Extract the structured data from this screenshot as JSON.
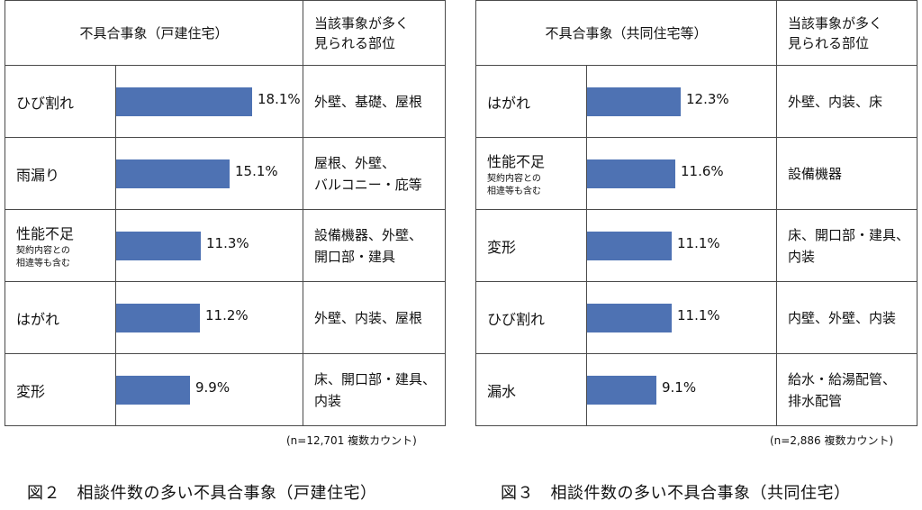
{
  "chart_data": [
    {
      "type": "bar",
      "orientation": "horizontal",
      "header": {
        "category": "不具合事象（戸建住宅）",
        "location": "当該事象が多く\n見られる部位"
      },
      "rows": [
        {
          "category": "ひび割れ",
          "sub": "",
          "value": 18.1,
          "value_label": "18.1%",
          "location": "外壁、基礎、屋根"
        },
        {
          "category": "雨漏り",
          "sub": "",
          "value": 15.1,
          "value_label": "15.1%",
          "location": "屋根、外壁、\nバルコニー・庇等"
        },
        {
          "category": "性能不足",
          "sub": "契約内容との\n相違等も含む",
          "value": 11.3,
          "value_label": "11.3%",
          "location": "設備機器、外壁、\n開口部・建具"
        },
        {
          "category": "はがれ",
          "sub": "",
          "value": 11.2,
          "value_label": "11.2%",
          "location": "外壁、内装、屋根"
        },
        {
          "category": "変形",
          "sub": "",
          "value": 9.9,
          "value_label": "9.9%",
          "location": "床、開口部・建具、\n内装"
        }
      ],
      "note": "(n=12,701 複数カウント)",
      "caption": "図２　相談件数の多い不具合事象（戸建住宅）"
    },
    {
      "type": "bar",
      "orientation": "horizontal",
      "header": {
        "category": "不具合事象（共同住宅等）",
        "location": "当該事象が多く\n見られる部位"
      },
      "rows": [
        {
          "category": "はがれ",
          "sub": "",
          "value": 12.3,
          "value_label": "12.3%",
          "location": "外壁、内装、床"
        },
        {
          "category": "性能不足",
          "sub": "契約内容との\n相違等も含む",
          "value": 11.6,
          "value_label": "11.6%",
          "location": "設備機器"
        },
        {
          "category": "変形",
          "sub": "",
          "value": 11.1,
          "value_label": "11.1%",
          "location": "床、開口部・建具、\n内装"
        },
        {
          "category": "ひび割れ",
          "sub": "",
          "value": 11.1,
          "value_label": "11.1%",
          "location": "内壁、外壁、内装"
        },
        {
          "category": "漏水",
          "sub": "",
          "value": 9.1,
          "value_label": "9.1%",
          "location": "給水・給湯配管、\n排水配管"
        }
      ],
      "note": "(n=2,886 複数カウント)",
      "caption": "図３　相談件数の多い不具合事象（共同住宅）"
    }
  ]
}
